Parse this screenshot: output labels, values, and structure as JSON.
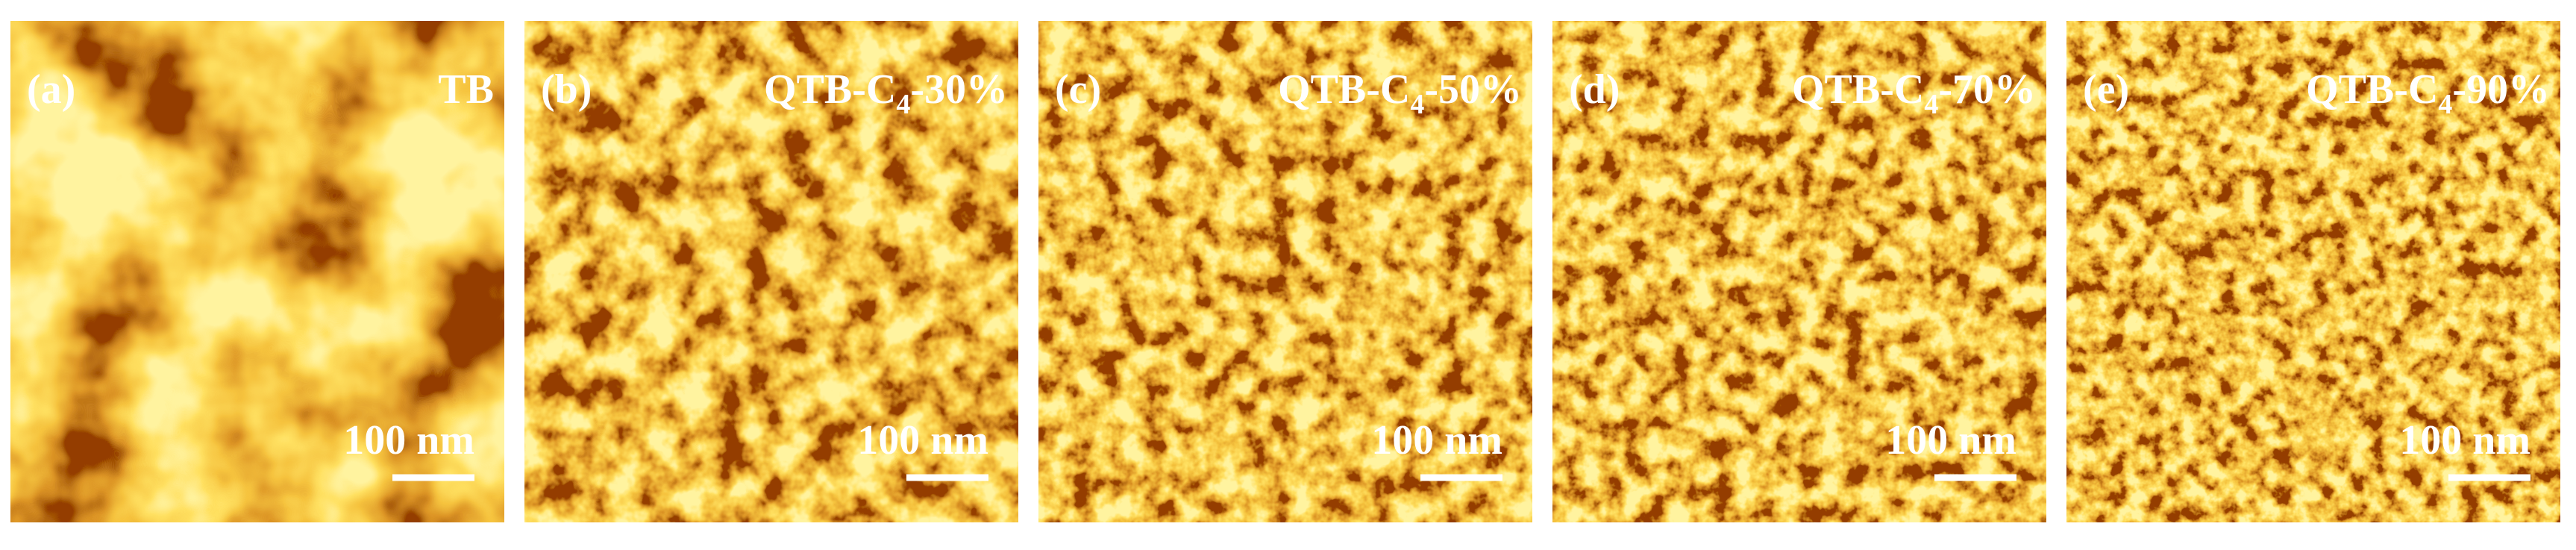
{
  "panels": [
    {
      "tag": "(a)",
      "label": {
        "main": "TB"
      },
      "scale_bar": "100 nm"
    },
    {
      "tag": "(b)",
      "label": {
        "main": "QTB-C",
        "sub": "4",
        "rest": "-30%"
      },
      "scale_bar": "100 nm"
    },
    {
      "tag": "(c)",
      "label": {
        "main": "QTB-C",
        "sub": "4",
        "rest": "-50%"
      },
      "scale_bar": "100 nm"
    },
    {
      "tag": "(d)",
      "label": {
        "main": "QTB-C",
        "sub": "4",
        "rest": "-70%"
      },
      "scale_bar": "100 nm"
    },
    {
      "tag": "(e)",
      "label": {
        "main": "QTB-C",
        "sub": "4",
        "rest": "-90%"
      },
      "scale_bar": "100 nm"
    }
  ]
}
